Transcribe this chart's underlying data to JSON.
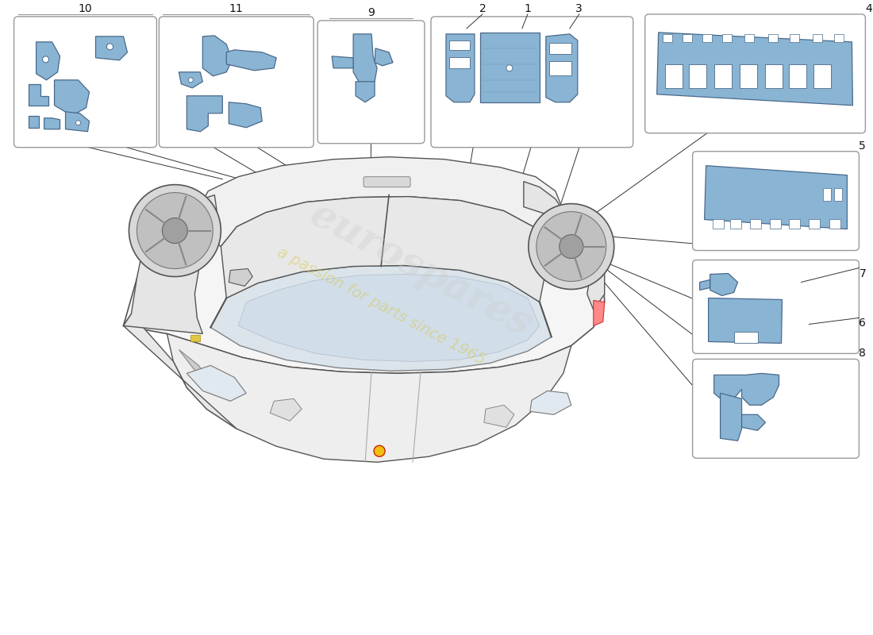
{
  "background_color": "#ffffff",
  "part_fill_color": "#8ab4d4",
  "part_edge_color": "#4a6a8a",
  "part_fill_light": "#a8c8e8",
  "box_edge_color": "#999999",
  "box_fill_color": "#ffffff",
  "line_color": "#333333",
  "watermark_text1": "eurospares",
  "watermark_text2": "a passion for parts since 1965",
  "watermark_color1": "#bbbbbb",
  "watermark_color2": "#d4c840",
  "figsize": [
    11.0,
    8.0
  ],
  "dpi": 100,
  "car_color": "#f5f5f5",
  "car_edge": "#555555",
  "car_detail": "#cccccc"
}
